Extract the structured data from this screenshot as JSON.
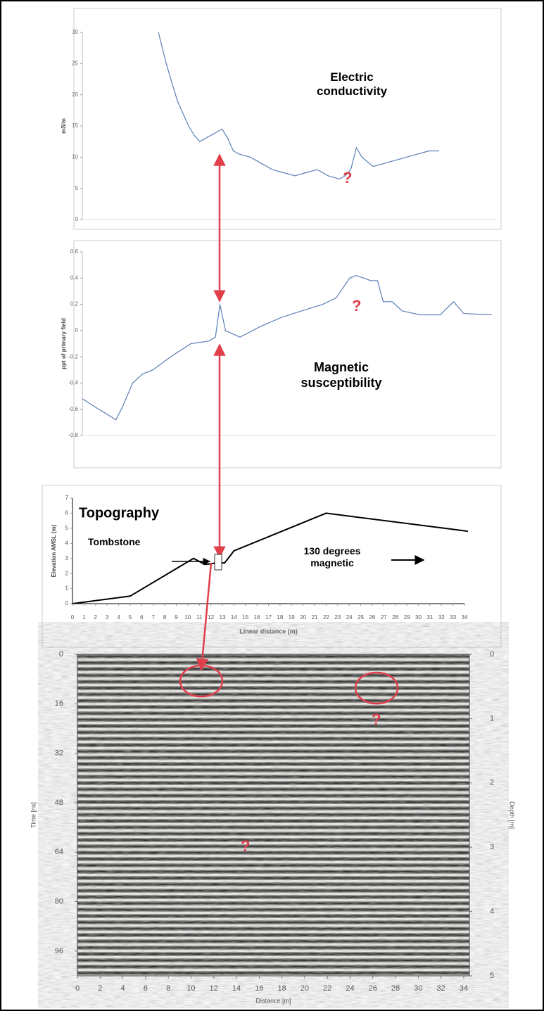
{
  "chart_data": [
    {
      "type": "line",
      "ylabel": "mS/m",
      "xlim": [
        0,
        37
      ],
      "ylim": [
        0,
        30
      ],
      "yticks": [
        0,
        5,
        10,
        15,
        20,
        25,
        30
      ],
      "x": [
        6.8,
        7.5,
        8,
        8.5,
        9,
        9.5,
        10,
        10.5,
        11,
        11.5,
        12,
        12.5,
        13,
        13.5,
        14,
        15,
        16,
        17,
        18,
        19,
        20,
        21,
        22,
        23,
        23.5,
        24,
        24.5,
        25,
        26,
        27,
        28,
        29,
        30,
        31,
        31.9
      ],
      "series": [
        {
          "color": "#5b7fb5",
          "values": [
            30,
            25,
            22,
            19,
            17,
            15,
            13.5,
            12.5,
            13,
            13.5,
            14,
            14.5,
            13,
            11,
            10.5,
            10,
            9,
            8,
            7.5,
            7,
            7.5,
            8,
            7,
            6.5,
            7,
            8,
            11.5,
            10,
            8.5,
            9,
            9.5,
            10,
            10.5,
            11,
            11
          ]
        }
      ],
      "annotations": [
        "Electric conductivity",
        "?"
      ]
    },
    {
      "type": "line",
      "ylabel": "ppt of primary field",
      "xlim": [
        0,
        37
      ],
      "ylim": [
        -0.8,
        0.6
      ],
      "yticks": [
        -0.8,
        -0.6,
        -0.4,
        -0.2,
        0,
        0.2,
        0.4,
        0.6
      ],
      "x": [
        0,
        1.1,
        3,
        3.6,
        4.5,
        5.4,
        6.3,
        7.9,
        9.7,
        11.3,
        11.9,
        12.3,
        12.8,
        14.1,
        15.9,
        17.8,
        19.6,
        21.5,
        22.7,
        23.9,
        24.5,
        25.8,
        26.4,
        26.9,
        27.7,
        28.6,
        30.2,
        32.0,
        33.2,
        34.1,
        36.6
      ],
      "series": [
        {
          "color": "#5b7fb5",
          "values": [
            -0.52,
            -0.58,
            -0.68,
            -0.58,
            -0.4,
            -0.33,
            -0.3,
            -0.2,
            -0.1,
            -0.08,
            -0.05,
            0.2,
            0,
            -0.05,
            0.03,
            0.1,
            0.15,
            0.2,
            0.25,
            0.4,
            0.42,
            0.38,
            0.38,
            0.22,
            0.22,
            0.15,
            0.12,
            0.12,
            0.22,
            0.13,
            0.12
          ]
        }
      ],
      "annotations": [
        "Magnetic susceptibility",
        "?"
      ]
    },
    {
      "type": "line",
      "title": "Topography",
      "xlabel": "Linear distance (m)",
      "ylabel": "Elevation AMSL (m)",
      "xlim": [
        0,
        34
      ],
      "ylim": [
        0,
        7
      ],
      "xticks": [
        0,
        1,
        2,
        3,
        4,
        5,
        6,
        7,
        8,
        9,
        10,
        11,
        12,
        13,
        14,
        15,
        16,
        17,
        18,
        19,
        20,
        21,
        22,
        23,
        24,
        25,
        26,
        27,
        28,
        29,
        30,
        31,
        32,
        33,
        34
      ],
      "yticks": [
        0,
        1,
        2,
        3,
        4,
        5,
        6,
        7
      ],
      "x": [
        0,
        5,
        10.5,
        11.5,
        12.5,
        13.2,
        14,
        22,
        34.3
      ],
      "series": [
        {
          "color": "#000000",
          "values": [
            0,
            0.5,
            3,
            2.6,
            2.7,
            2.7,
            3.5,
            6,
            4.8
          ]
        }
      ],
      "annotations": [
        "Tombstone",
        "130 degrees magnetic"
      ]
    },
    {
      "type": "radargram",
      "xlabel": "Distance [m]",
      "ylabel": "Time [ns]",
      "y2label": "Depth [m]",
      "y_inverted": true,
      "xlim": [
        0,
        34.5
      ],
      "ylim": [
        0,
        104
      ],
      "y2lim": [
        0,
        5
      ],
      "xticks": [
        0,
        2,
        4,
        6,
        8,
        10,
        12,
        14,
        16,
        18,
        20,
        22,
        24,
        26,
        28,
        30,
        32,
        34
      ],
      "yticks": [
        0,
        16,
        32,
        48,
        64,
        80,
        96
      ],
      "y2ticks": [
        0,
        1,
        2,
        3,
        4,
        5
      ],
      "annotations": [
        "?",
        "?"
      ]
    }
  ]
}
